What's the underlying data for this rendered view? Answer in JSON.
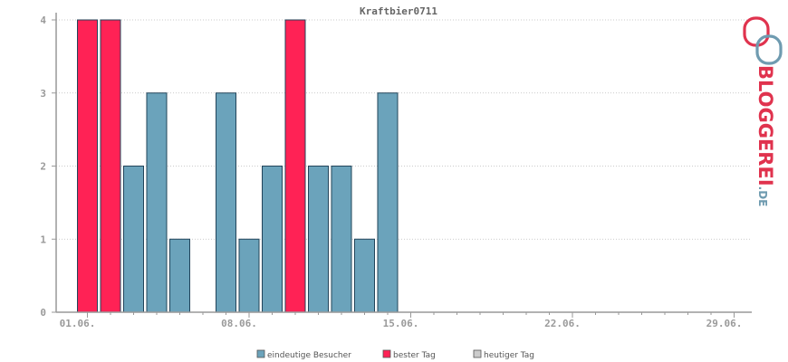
{
  "chart_data": {
    "type": "bar",
    "title": "Kraftbier0711",
    "xlabel": "",
    "ylabel": "",
    "x_tick_labels": [
      "01.06.",
      "08.06.",
      "15.06.",
      "22.06.",
      "29.06."
    ],
    "y_tick_labels": [
      "0",
      "1",
      "2",
      "3",
      "4"
    ],
    "ylim": [
      0,
      4
    ],
    "days": [
      "01.06.",
      "02.06.",
      "03.06.",
      "04.06.",
      "05.06.",
      "06.06.",
      "07.06.",
      "08.06.",
      "09.06.",
      "10.06.",
      "11.06.",
      "12.06.",
      "13.06.",
      "14.06.",
      "15.06.",
      "16.06.",
      "17.06.",
      "18.06.",
      "19.06.",
      "20.06.",
      "21.06.",
      "22.06.",
      "23.06.",
      "24.06.",
      "25.06.",
      "26.06.",
      "27.06.",
      "28.06.",
      "29.06.",
      "30.06."
    ],
    "values": [
      4,
      4,
      2,
      3,
      1,
      0,
      3,
      1,
      2,
      4,
      2,
      2,
      1,
      3,
      0,
      0,
      0,
      0,
      0,
      0,
      0,
      0,
      0,
      0,
      0,
      0,
      0,
      0,
      0,
      0
    ],
    "best_days": [
      "01.06.",
      "02.06.",
      "10.06."
    ],
    "grid": true,
    "series": [
      {
        "name": "eindeutige Besucher",
        "color": "#6ba3bb"
      },
      {
        "name": "bester Tag",
        "color": "#ff2255"
      },
      {
        "name": "heutiger Tag",
        "color": "#cccccc"
      }
    ],
    "legend_position": "bottom-center"
  },
  "colors": {
    "visitor_bar": "#6ba3bb",
    "best_bar": "#ff2255",
    "today_bar": "#cccccc",
    "bar_outline": "#22445a",
    "axis": "#999999",
    "grid": "#bbbbbb"
  },
  "logo": {
    "text_main": "BLOGGEREI",
    "text_suffix": ".DE"
  }
}
